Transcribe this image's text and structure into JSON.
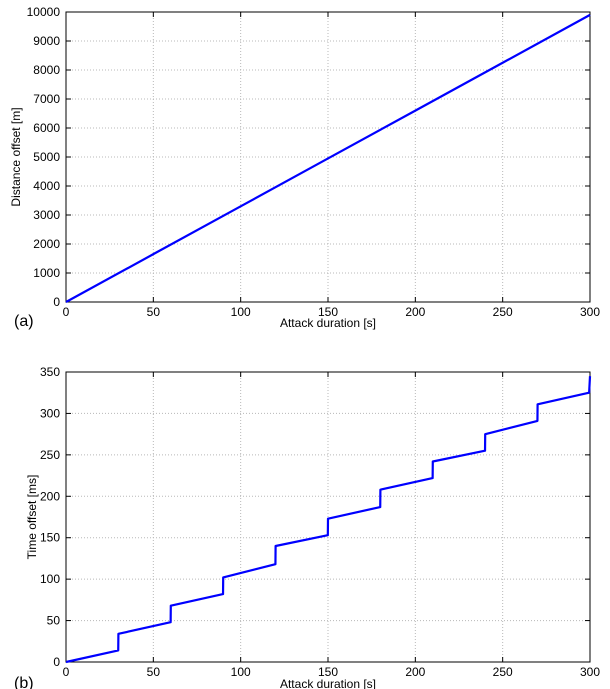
{
  "chart_data": [
    {
      "type": "line",
      "panel_tag": "(a)",
      "xlabel": "Attack duration  [s]",
      "ylabel": "Distance offset  [m]",
      "xlim": [
        0,
        300
      ],
      "ylim": [
        0,
        10000
      ],
      "xticks": [
        "0",
        "50",
        "100",
        "150",
        "200",
        "250",
        "300"
      ],
      "yticks": [
        "0",
        "1000",
        "2000",
        "3000",
        "4000",
        "5000",
        "6000",
        "7000",
        "8000",
        "9000",
        "10000"
      ],
      "grid": true,
      "series": [
        {
          "color": "#0000ff",
          "x": [
            0,
            50,
            100,
            150,
            200,
            250,
            300
          ],
          "y": [
            0,
            1650,
            3300,
            4950,
            6600,
            8250,
            9900
          ]
        }
      ]
    },
    {
      "type": "line",
      "panel_tag": "(b)",
      "xlabel": "Attack duration  [s]",
      "ylabel": "Time offset  [ms]",
      "xlim": [
        0,
        300
      ],
      "ylim": [
        0,
        350
      ],
      "xticks": [
        "0",
        "50",
        "100",
        "150",
        "200",
        "250",
        "300"
      ],
      "yticks": [
        "0",
        "50",
        "100",
        "150",
        "200",
        "250",
        "300",
        "350"
      ],
      "grid": true,
      "series": [
        {
          "color": "#0000ff",
          "x": [
            0,
            29.9,
            30,
            59.9,
            60,
            89.9,
            90,
            119.9,
            120,
            149.9,
            150,
            179.9,
            180,
            209.9,
            210,
            239.9,
            240,
            269.9,
            270,
            299.5,
            300
          ],
          "y": [
            0,
            14,
            34,
            48,
            68,
            82,
            102,
            118,
            140,
            153,
            173,
            187,
            208,
            222,
            242,
            255,
            275,
            291,
            311,
            325,
            345
          ]
        }
      ]
    }
  ]
}
